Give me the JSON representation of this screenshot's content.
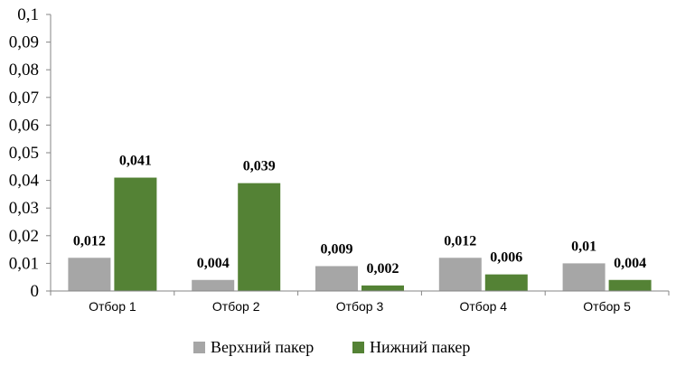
{
  "chart_data": {
    "type": "bar",
    "categories": [
      "Отбор 1",
      "Отбор 2",
      "Отбор 3",
      "Отбор 4",
      "Отбор 5"
    ],
    "series": [
      {
        "name": "Верхний пакер",
        "color": "#a6a6a6",
        "values": [
          0.012,
          0.004,
          0.009,
          0.012,
          0.01
        ],
        "labels": [
          "0,012",
          "0,004",
          "0,009",
          "0,012",
          "0,01"
        ]
      },
      {
        "name": "Нижний пакер",
        "color": "#548235",
        "values": [
          0.041,
          0.039,
          0.002,
          0.006,
          0.004
        ],
        "labels": [
          "0,041",
          "0,039",
          "0,002",
          "0,006",
          "0,004"
        ]
      }
    ],
    "ylim": [
      0,
      0.1
    ],
    "yticks": [
      0,
      0.01,
      0.02,
      0.03,
      0.04,
      0.05,
      0.06,
      0.07,
      0.08,
      0.09,
      0.1
    ],
    "ytick_labels": [
      "0",
      "0,01",
      "0,02",
      "0,03",
      "0,04",
      "0,05",
      "0,06",
      "0,07",
      "0,08",
      "0,09",
      "0,1"
    ],
    "grid": false,
    "legend_position": "bottom"
  }
}
